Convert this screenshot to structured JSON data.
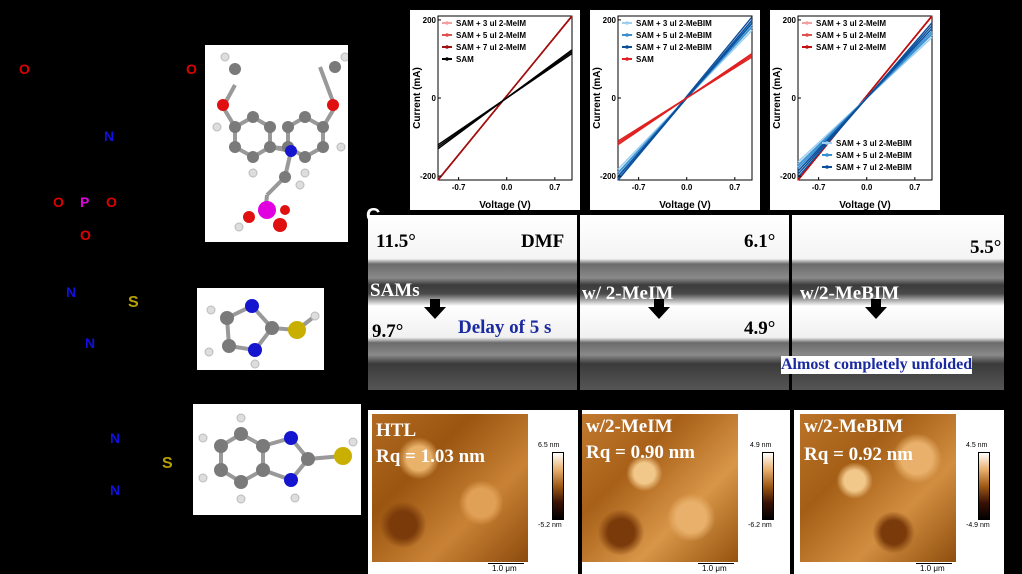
{
  "structures": {
    "carbazole": {
      "atoms": [
        "O",
        "O",
        "N",
        "O",
        "P",
        "O",
        "O"
      ]
    },
    "imidazole": {
      "atoms": [
        "N",
        "S",
        "N"
      ]
    },
    "benzimidazole": {
      "atoms": [
        "N",
        "S",
        "N"
      ]
    }
  },
  "colors": {
    "O": "#e00000",
    "N": "#1010e0",
    "P": "#e000e0",
    "S": "#b8a000"
  },
  "panel_c": {
    "label": "C",
    "top_row": {
      "angles": [
        "11.5°",
        "6.1°",
        "5.5°"
      ],
      "solvent": "DMF",
      "labels": [
        "SAMs",
        "w/ 2-MeIM",
        "w/2-MeBIM"
      ]
    },
    "bottom_row": {
      "angles": [
        "9.7°",
        "4.9°"
      ],
      "delay": "Delay of 5 s",
      "unfolded": "Almost completely unfolded"
    }
  },
  "afm": [
    {
      "name": "HTL",
      "rq": "Rq = 1.03 nm",
      "max": "6.5 nm",
      "min": "-5.2 nm",
      "scale": "1.0 μm"
    },
    {
      "name": "w/2-MeIM",
      "rq": "Rq = 0.90 nm",
      "max": "4.9 nm",
      "min": "-6.2 nm",
      "scale": "1.0 μm"
    },
    {
      "name": "w/2-MeBIM",
      "rq": "Rq = 0.92 nm",
      "max": "4.5 nm",
      "min": "-4.9 nm",
      "scale": "1.0 μm"
    }
  ],
  "chart_data": [
    {
      "type": "line",
      "xlabel": "Voltage (V)",
      "ylabel": "Current (mA)",
      "xticks": [
        "-0.7",
        "0.0",
        "0.7"
      ],
      "yticks": [
        "200",
        "0",
        "-200"
      ],
      "xlim": [
        -1.0,
        0.95
      ],
      "ylim": [
        -210,
        210
      ],
      "legend_position": "top-left",
      "series": [
        {
          "name": "SAM + 3 ul 2-MeIM",
          "color": "#f4a0a0",
          "slope": 245
        },
        {
          "name": "SAM + 5 ul 2-MeIM",
          "color": "#e05050",
          "slope": 255
        },
        {
          "name": "SAM + 7 ul 2-MeIM",
          "color": "#a01010",
          "slope": 230
        },
        {
          "name": "SAM",
          "color": "#000000",
          "slope": 125
        }
      ]
    },
    {
      "type": "line",
      "xlabel": "Voltage (V)",
      "ylabel": "Current (mA)",
      "xticks": [
        "-0.7",
        "0.0",
        "0.7"
      ],
      "yticks": [
        "200",
        "0",
        "-200"
      ],
      "xlim": [
        -1.0,
        0.95
      ],
      "ylim": [
        -210,
        210
      ],
      "legend_position": "top-left",
      "series": [
        {
          "name": "SAM + 3 ul 2-MeBIM",
          "color": "#9dd0f0",
          "slope": 190
        },
        {
          "name": "SAM + 5 ul 2-MeBIM",
          "color": "#3a8fd0",
          "slope": 200
        },
        {
          "name": "SAM + 7 ul 2-MeBIM",
          "color": "#0b4f9c",
          "slope": 210
        },
        {
          "name": "SAM",
          "color": "#e02020",
          "slope": 115
        }
      ]
    },
    {
      "type": "line",
      "xlabel": "Voltage (V)",
      "ylabel": "Current (mA)",
      "xticks": [
        "-0.7",
        "0.0",
        "0.7"
      ],
      "yticks": [
        "200",
        "0",
        "-200"
      ],
      "xlim": [
        -1.0,
        0.95
      ],
      "ylim": [
        -210,
        210
      ],
      "legend_position": "top-left / bottom-right",
      "series": [
        {
          "name": "SAM + 3 ul 2-MeIM",
          "color": "#f4a0a0",
          "slope": 230
        },
        {
          "name": "SAM + 5 ul 2-MeIM",
          "color": "#e05050",
          "slope": 240
        },
        {
          "name": "SAM + 7 ul 2-MeIM",
          "color": "#c01010",
          "slope": 250
        },
        {
          "name": "SAM + 3 ul 2-MeBIM",
          "color": "#9dd0f0",
          "slope": 170
        },
        {
          "name": "SAM + 5 ul 2-MeBIM",
          "color": "#3a8fd0",
          "slope": 180
        },
        {
          "name": "SAM + 7 ul 2-MeBIM",
          "color": "#0b4f9c",
          "slope": 195
        }
      ]
    }
  ]
}
